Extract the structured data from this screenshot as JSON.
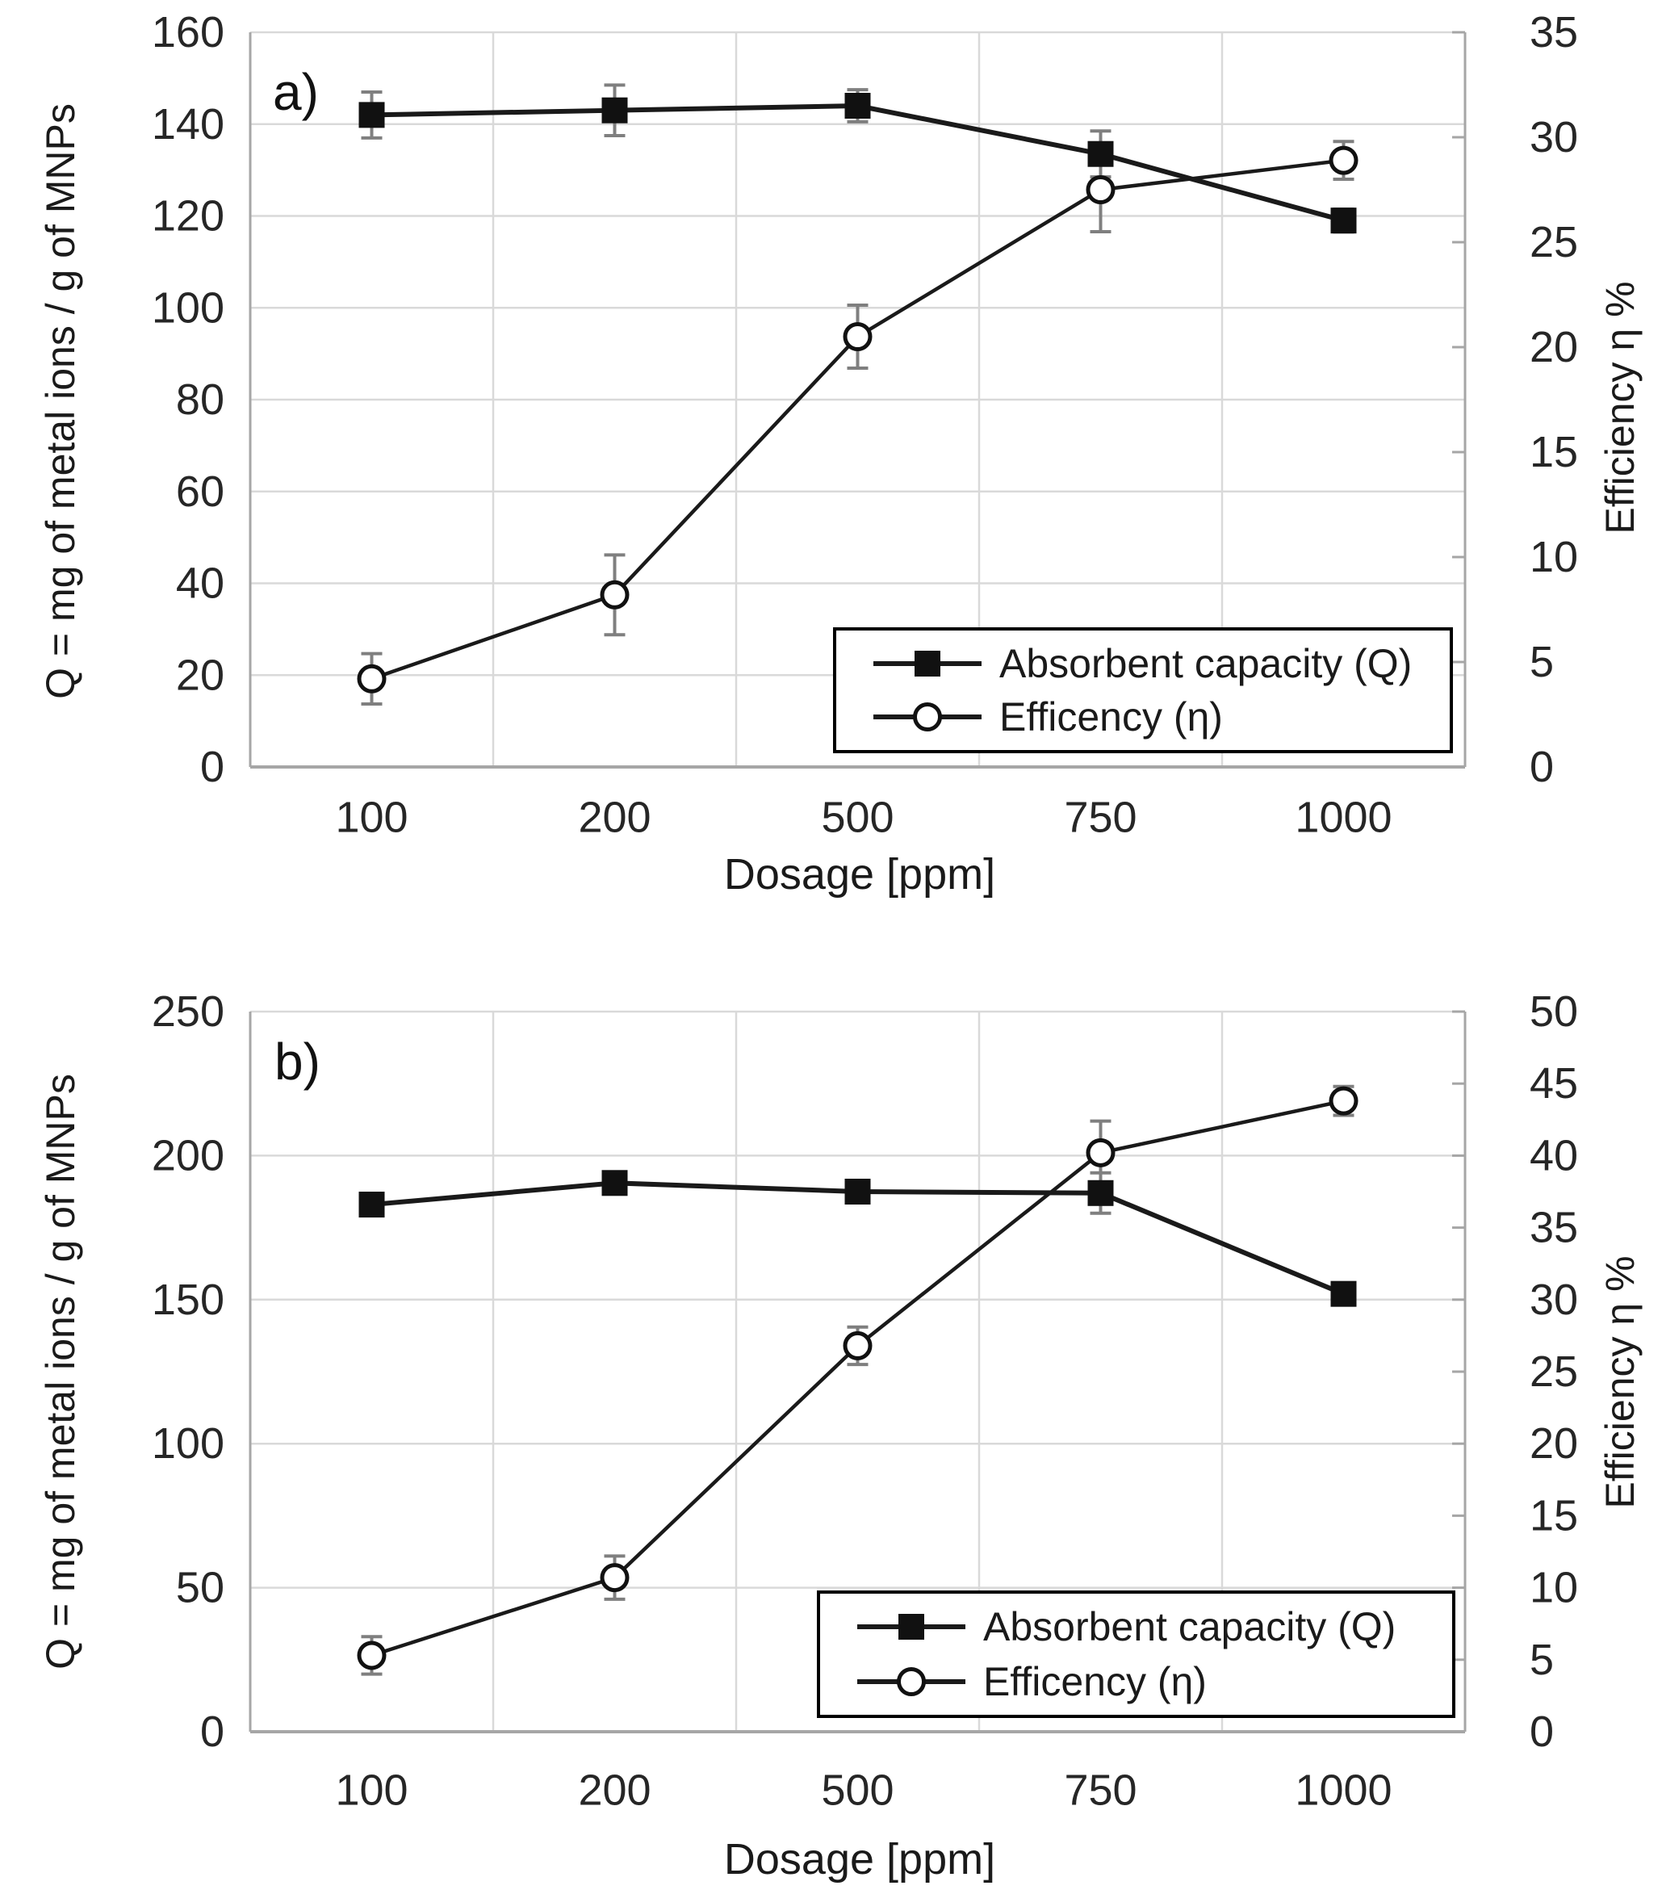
{
  "figure": {
    "background": "#ffffff",
    "description": "Two stacked line charts of absorbent capacity and efficiency versus dosage"
  },
  "colors": {
    "line": "#1a1a1a",
    "marker_fill": "#111111",
    "marker_open_fill": "#ffffff",
    "gridline": "#d9d9d9",
    "axis_line": "#a6a6a6",
    "error_bar": "#7f7f7f",
    "tick_text": "#262626",
    "legend_border": "#000000"
  },
  "chart_data": [
    {
      "id": "a",
      "type": "line",
      "panel_label": "a)",
      "xlabel": "Dosage [ppm]",
      "ylabel_left": "Q = mg of metal ions / g of MNPs",
      "ylabel_right": "Efficiency η %",
      "categories": [
        "100",
        "200",
        "500",
        "750",
        "1000"
      ],
      "left_axis": {
        "min": 0,
        "max": 160,
        "step": 20,
        "tick_labels": [
          "0",
          "20",
          "40",
          "60",
          "80",
          "100",
          "120",
          "140",
          "160"
        ]
      },
      "right_axis": {
        "min": 0,
        "max": 35,
        "step": 5,
        "tick_labels": [
          "0",
          "5",
          "10",
          "15",
          "20",
          "25",
          "30",
          "35"
        ]
      },
      "grid": true,
      "legend_position": "inside-bottom-right",
      "series": [
        {
          "name": "Absorbent capacity (Q)",
          "axis": "left",
          "marker": "filled-square",
          "values": [
            142,
            143,
            144,
            133.5,
            119
          ],
          "errors": [
            5,
            5.5,
            3.5,
            5,
            2.5
          ]
        },
        {
          "name": "Efficency  (η)",
          "axis": "right",
          "marker": "open-circle",
          "values": [
            4.2,
            8.2,
            20.5,
            27.5,
            28.9
          ],
          "errors": [
            1.2,
            1.9,
            1.5,
            2.0,
            0.9
          ]
        }
      ]
    },
    {
      "id": "b",
      "type": "line",
      "panel_label": "b)",
      "xlabel": "Dosage [ppm]",
      "ylabel_left": "Q = mg of metal ions / g of MNPs",
      "ylabel_right": "Efficiency η %",
      "categories": [
        "100",
        "200",
        "500",
        "750",
        "1000"
      ],
      "left_axis": {
        "min": 0,
        "max": 250,
        "step": 50,
        "tick_labels": [
          "0",
          "50",
          "100",
          "150",
          "200",
          "250"
        ]
      },
      "right_axis": {
        "min": 0,
        "max": 50,
        "step": 5,
        "tick_labels": [
          "0",
          "5",
          "10",
          "15",
          "20",
          "25",
          "30",
          "35",
          "40",
          "45",
          "50"
        ]
      },
      "grid": true,
      "legend_position": "inside-bottom-right",
      "series": [
        {
          "name": "Absorbent capacity (Q)",
          "axis": "left",
          "marker": "filled-square",
          "values": [
            183,
            190.5,
            187.5,
            187,
            152
          ],
          "errors": [
            2,
            3,
            2,
            7,
            2
          ]
        },
        {
          "name": "Efficency  (η)",
          "axis": "right",
          "marker": "open-circle",
          "values": [
            5.3,
            10.7,
            26.8,
            40.2,
            43.8
          ],
          "errors": [
            1.3,
            1.5,
            1.3,
            2.2,
            1.0
          ]
        }
      ]
    }
  ]
}
